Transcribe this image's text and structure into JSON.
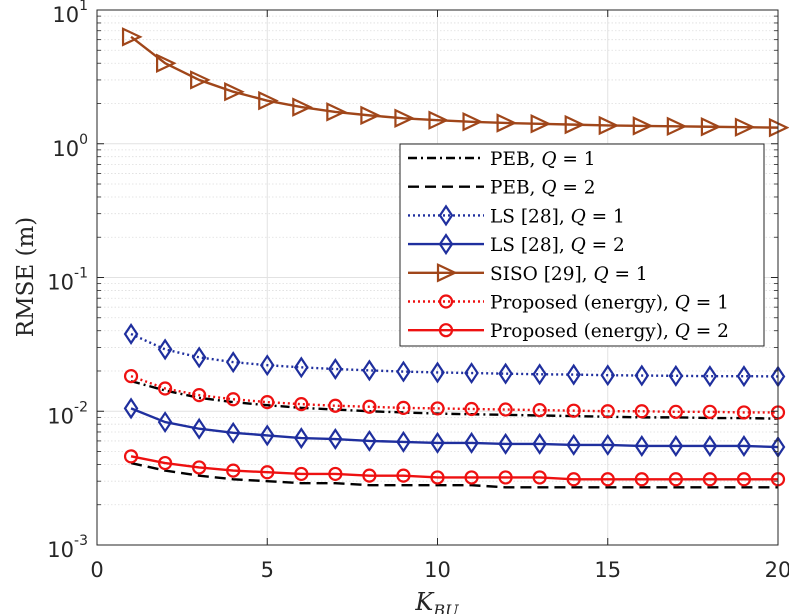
{
  "chart_data": {
    "type": "line",
    "title": "",
    "xlabel": "K_BU",
    "xlabel_main": "K",
    "xlabel_sub": "BU",
    "ylabel": "RMSE (m)",
    "xlim": [
      0,
      20
    ],
    "ylim": [
      0.001,
      10
    ],
    "yscale": "log",
    "grid": true,
    "legend_position": "center-right",
    "x_ticks": [
      {
        "value": 0,
        "label": "0"
      },
      {
        "value": 5,
        "label": "5"
      },
      {
        "value": 10,
        "label": "10"
      },
      {
        "value": 15,
        "label": "15"
      },
      {
        "value": 20,
        "label": "20"
      }
    ],
    "y_ticks": [
      {
        "value": 10,
        "base": "10",
        "exp": "1"
      },
      {
        "value": 1,
        "base": "10",
        "exp": "0"
      },
      {
        "value": 0.1,
        "base": "10",
        "exp": "-1"
      },
      {
        "value": 0.01,
        "base": "10",
        "exp": "-2"
      },
      {
        "value": 0.001,
        "base": "10",
        "exp": "-3"
      }
    ],
    "x": [
      1,
      2,
      3,
      4,
      5,
      6,
      7,
      8,
      9,
      10,
      11,
      12,
      13,
      14,
      15,
      16,
      17,
      18,
      19,
      20
    ],
    "series": [
      {
        "name": "PEB, Q = 1",
        "label_prefix": "PEB, ",
        "q_value": "1",
        "color": "#000000",
        "line": "dashdot",
        "marker": "none",
        "values": [
          0.0168,
          0.0143,
          0.0126,
          0.0117,
          0.0111,
          0.0106,
          0.0103,
          0.01,
          0.0098,
          0.0096,
          0.0095,
          0.0094,
          0.0093,
          0.0092,
          0.0091,
          0.009,
          0.009,
          0.0089,
          0.0089,
          0.0088
        ]
      },
      {
        "name": "PEB, Q = 2",
        "label_prefix": "PEB, ",
        "q_value": "2",
        "color": "#000000",
        "line": "dashed",
        "marker": "none",
        "values": [
          0.0041,
          0.0036,
          0.0033,
          0.0031,
          0.003,
          0.0029,
          0.0029,
          0.0028,
          0.0028,
          0.0028,
          0.0028,
          0.0027,
          0.0027,
          0.0027,
          0.0027,
          0.0027,
          0.0027,
          0.0027,
          0.0027,
          0.0027
        ]
      },
      {
        "name": "LS [28], Q = 1",
        "label_prefix": "LS [28], ",
        "q_value": "1",
        "color": "#1f2f9e",
        "line": "dotted",
        "marker": "diamond",
        "values": [
          0.0378,
          0.029,
          0.0253,
          0.0233,
          0.0221,
          0.0213,
          0.0207,
          0.0202,
          0.0198,
          0.0195,
          0.0193,
          0.0191,
          0.0189,
          0.0188,
          0.0186,
          0.0185,
          0.0184,
          0.0183,
          0.0183,
          0.0182
        ]
      },
      {
        "name": "LS [28], Q = 2",
        "label_prefix": "LS [28], ",
        "q_value": "2",
        "color": "#1f2f9e",
        "line": "solid",
        "marker": "diamond",
        "values": [
          0.0105,
          0.0083,
          0.0074,
          0.0069,
          0.0066,
          0.0063,
          0.0062,
          0.006,
          0.0059,
          0.0058,
          0.0058,
          0.0057,
          0.0057,
          0.0056,
          0.0056,
          0.0055,
          0.0055,
          0.0055,
          0.0055,
          0.0054
        ]
      },
      {
        "name": "SISO [29], Q = 1",
        "label_prefix": "SISO [29], ",
        "q_value": "1",
        "color": "#a0461a",
        "line": "solid",
        "marker": "triangle-right",
        "values": [
          6.3,
          4.0,
          3.0,
          2.45,
          2.1,
          1.88,
          1.73,
          1.63,
          1.55,
          1.5,
          1.46,
          1.43,
          1.41,
          1.39,
          1.37,
          1.36,
          1.35,
          1.34,
          1.33,
          1.32
        ]
      },
      {
        "name": "Proposed (energy), Q = 1",
        "label_prefix": "Proposed (energy), ",
        "q_value": "1",
        "color": "#ee1111",
        "line": "dotted",
        "marker": "circle",
        "values": [
          0.0183,
          0.0148,
          0.0132,
          0.0123,
          0.0117,
          0.0113,
          0.011,
          0.0108,
          0.0106,
          0.0105,
          0.0104,
          0.0103,
          0.0102,
          0.0101,
          0.01,
          0.01,
          0.0099,
          0.0099,
          0.0098,
          0.0098
        ]
      },
      {
        "name": "Proposed (energy), Q = 2",
        "label_prefix": "Proposed (energy), ",
        "q_value": "2",
        "color": "#ee1111",
        "line": "solid",
        "marker": "circle",
        "values": [
          0.0046,
          0.0041,
          0.0038,
          0.0036,
          0.0035,
          0.0034,
          0.0034,
          0.0033,
          0.0033,
          0.0032,
          0.0032,
          0.0032,
          0.0032,
          0.0031,
          0.0031,
          0.0031,
          0.0031,
          0.0031,
          0.0031,
          0.0031
        ]
      }
    ]
  }
}
